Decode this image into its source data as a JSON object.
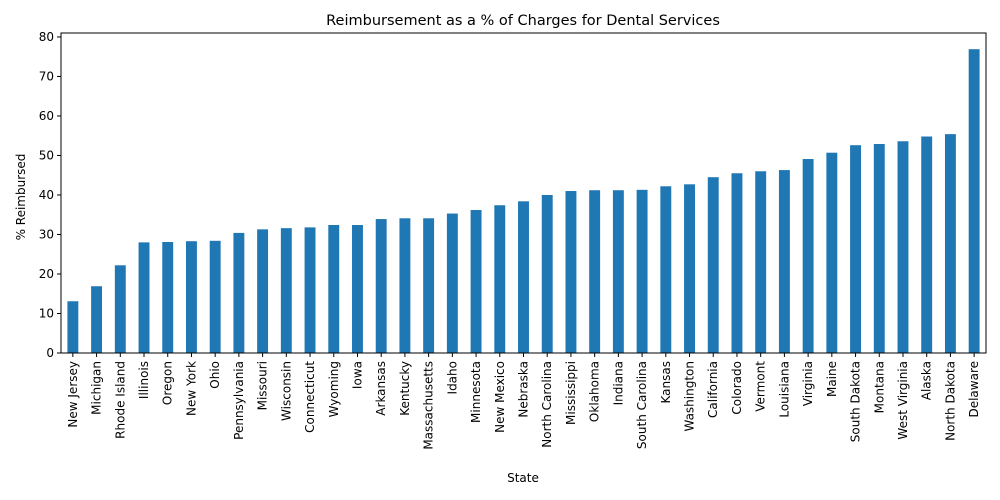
{
  "chart_data": {
    "type": "bar",
    "title": "Reimbursement as a % of Charges for Dental Services",
    "xlabel": "State",
    "ylabel": "% Reimbursed",
    "ylim": [
      0,
      81
    ],
    "yticks": [
      0,
      10,
      20,
      30,
      40,
      50,
      60,
      70,
      80
    ],
    "grid": false,
    "legend": "none",
    "bar_color": "#1f77b4",
    "categories": [
      "New Jersey",
      "Michigan",
      "Rhode Island",
      "Illinois",
      "Oregon",
      "New York",
      "Ohio",
      "Pennsylvania",
      "Missouri",
      "Wisconsin",
      "Connecticut",
      "Wyoming",
      "Iowa",
      "Arkansas",
      "Kentucky",
      "Massachusetts",
      "Idaho",
      "Minnesota",
      "New Mexico",
      "Nebraska",
      "North Carolina",
      "Mississippi",
      "Oklahoma",
      "Indiana",
      "South Carolina",
      "Kansas",
      "Washington",
      "California",
      "Colorado",
      "Vermont",
      "Louisiana",
      "Virginia",
      "Maine",
      "South Dakota",
      "Montana",
      "West Virginia",
      "Alaska",
      "North Dakota",
      "Delaware"
    ],
    "values": [
      13.1,
      16.9,
      22.2,
      28.0,
      28.1,
      28.3,
      28.4,
      30.4,
      31.3,
      31.6,
      31.8,
      32.4,
      32.4,
      33.9,
      34.1,
      34.1,
      35.3,
      36.2,
      37.4,
      38.4,
      40.0,
      41.0,
      41.2,
      41.2,
      41.3,
      42.2,
      42.7,
      44.5,
      45.5,
      46.0,
      46.3,
      49.1,
      50.7,
      52.6,
      52.9,
      53.6,
      54.8,
      55.4,
      76.9
    ]
  }
}
